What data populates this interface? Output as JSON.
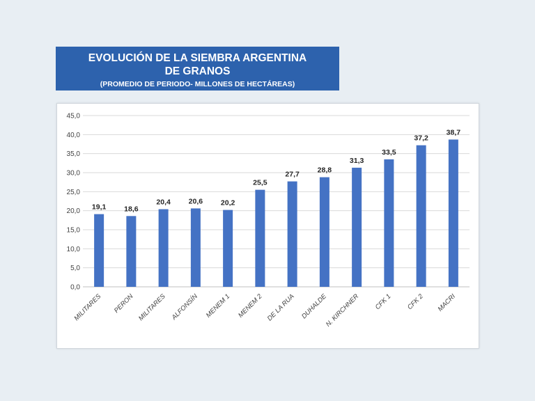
{
  "title": {
    "line1": "EVOLUCIÓN DE LA SIEMBRA ARGENTINA",
    "line2": "DE GRANOS",
    "subtitle": "(PROMEDIO DE PERIODO- MILLONES DE HECTÁREAS)"
  },
  "chart_data": {
    "type": "bar",
    "title": "EVOLUCIÓN DE LA SIEMBRA ARGENTINA DE GRANOS",
    "subtitle": "(PROMEDIO DE PERIODO- MILLONES DE HECTÁREAS)",
    "xlabel": "",
    "ylabel": "",
    "categories": [
      "MILITARES",
      "PERON",
      "MILITARES",
      "ALFONSÍN",
      "MENEM 1",
      "MENEM 2",
      "DE LA RUA",
      "DUHALDE",
      "N. KIRCHNER",
      "CFK 1",
      "CFK 2",
      "MACRI"
    ],
    "values": [
      19.1,
      18.6,
      20.4,
      20.6,
      20.2,
      25.5,
      27.7,
      28.8,
      31.3,
      33.5,
      37.2,
      38.7
    ],
    "data_labels": [
      "19,1",
      "18,6",
      "20,4",
      "20,6",
      "20,2",
      "25,5",
      "27,7",
      "28,8",
      "31,3",
      "33,5",
      "37,2",
      "38,7"
    ],
    "y_ticks": [
      "0,0",
      "5,0",
      "10,0",
      "15,0",
      "20,0",
      "25,0",
      "30,0",
      "35,0",
      "40,0",
      "45,0"
    ],
    "ylim": [
      0,
      45
    ],
    "grid": true,
    "legend": "none",
    "bar_color": "#4472c4"
  }
}
